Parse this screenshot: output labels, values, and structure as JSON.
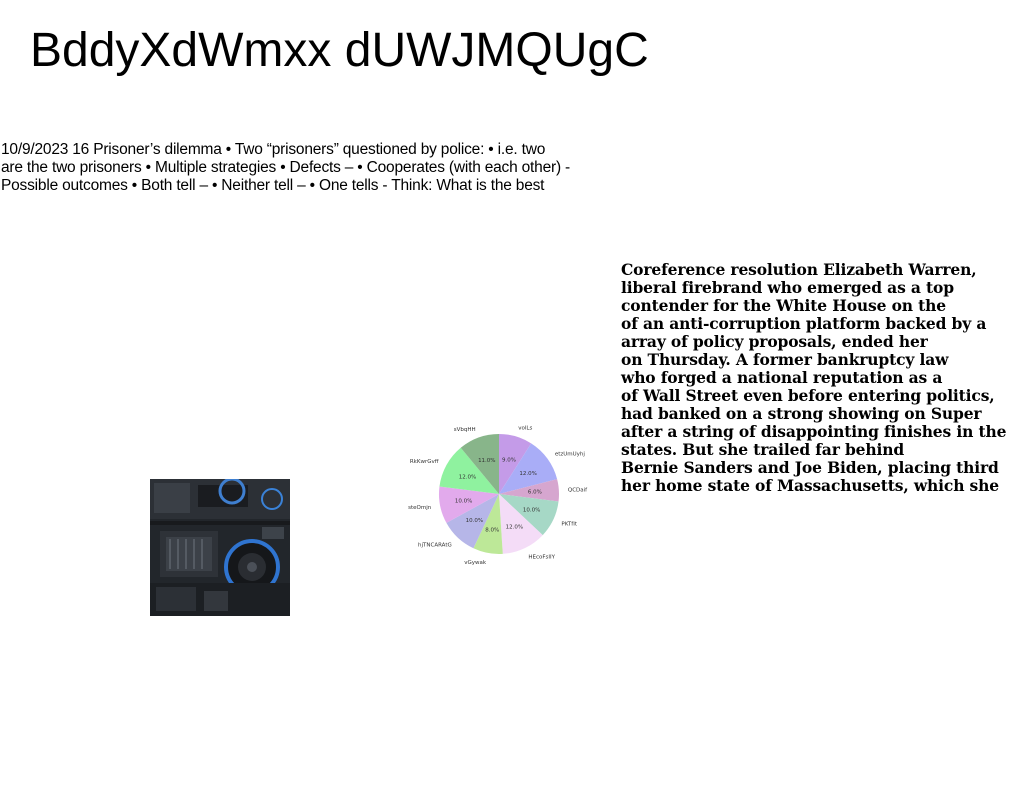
{
  "title": "BddyXdWmxx dUWJMQUgC",
  "left_paragraph": {
    "lines": [
      "10/9/2023 16 Prisoner’s dilemma • Two “prisoners” questioned by police: • i.e. two",
      "are the two prisoners • Multiple strategies • Defects – • Cooperates (with each other) -",
      "Possible outcomes • Both tell – • Neither tell – • One tells - Think: What is the best"
    ]
  },
  "right_paragraph": {
    "lines": [
      "Coreference resolution Elizabeth Warren,",
      "liberal firebrand who emerged as a top",
      "contender for the White House on the",
      "of an anti-corruption platform backed by a",
      "array of policy proposals, ended her",
      "on Thursday. A former bankruptcy law",
      "who forged a national reputation as a",
      "of Wall Street even before entering politics,",
      "had banked on a strong showing on Super",
      "after a string of disappointing finishes in the",
      "states. But she trailed far behind",
      "Bernie Sanders and Joe Biden, placing third",
      "her home state of Massachusetts, which she"
    ]
  },
  "chart_data": {
    "type": "pie",
    "categories": [
      "volLs",
      "etzUmUyhj",
      "QCDaif",
      "PKTfIt",
      "HEcoFsIIY",
      "vGywak",
      "hjTNCARAtG",
      "steOmjn",
      "RkKwrGvff",
      "sVbqHH"
    ],
    "values": [
      9.0,
      12.0,
      6.0,
      10.0,
      12.0,
      8.0,
      10.0,
      10.0,
      12.0,
      11.0
    ],
    "labels": [
      "9.0%",
      "12.0%",
      "6.0%",
      "10.0%",
      "12.0%",
      "8.0%",
      "10.0%",
      "10.0%",
      "12.0%",
      "11.0%"
    ],
    "colors": [
      "#c49be8",
      "#a9adf7",
      "#d6a6cf",
      "#a6d8c6",
      "#f4dcf7",
      "#bde898",
      "#b6b6e8",
      "#e2aaec",
      "#8ff29f",
      "#88b58a"
    ],
    "start_angle_deg": 90,
    "direction": "clockwise"
  }
}
